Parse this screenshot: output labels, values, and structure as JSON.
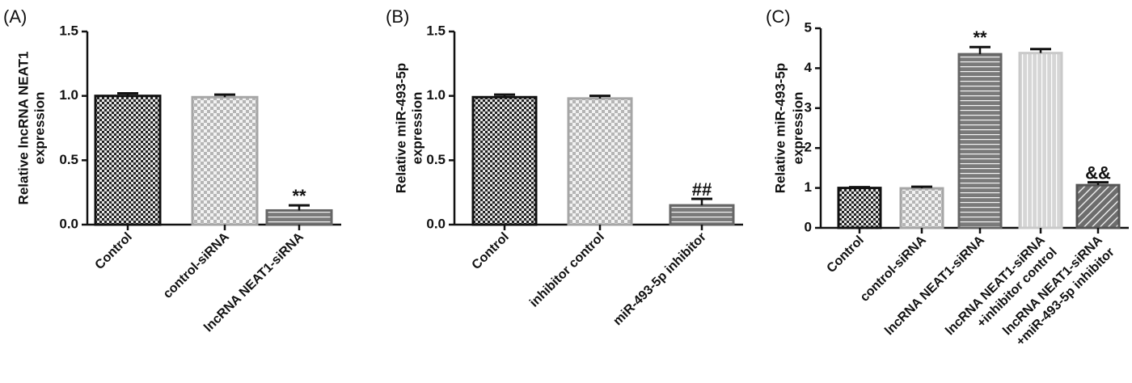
{
  "chart_data": [
    {
      "type": "bar",
      "panel": "(A)",
      "ylabel": [
        "Relative lncRNA NEAT1",
        "expression"
      ],
      "ylim": [
        0,
        1.5
      ],
      "yticks": [
        "0.0",
        "0.5",
        "1.0",
        "1.5"
      ],
      "categories": [
        "Control",
        "control-siRNA",
        "lncRNA NEAT1-siRNA"
      ],
      "values": [
        1.0,
        0.99,
        0.11
      ],
      "errors": [
        0.02,
        0.02,
        0.04
      ],
      "annotations": [
        "",
        "",
        "**"
      ],
      "patterns": [
        "check-dark",
        "check-light",
        "hlines-dark"
      ]
    },
    {
      "type": "bar",
      "panel": "(B)",
      "ylabel": [
        "Relative miR-493-5p",
        "expression"
      ],
      "ylim": [
        0,
        1.5
      ],
      "yticks": [
        "0.0",
        "0.5",
        "1.0",
        "1.5"
      ],
      "categories": [
        "Control",
        "inhibitor control",
        "miR-493-5p inhibitor"
      ],
      "values": [
        0.99,
        0.98,
        0.15
      ],
      "errors": [
        0.02,
        0.02,
        0.05
      ],
      "annotations": [
        "",
        "",
        "##"
      ],
      "patterns": [
        "check-dark",
        "check-light",
        "hlines-dark"
      ]
    },
    {
      "type": "bar",
      "panel": "(C)",
      "ylabel": [
        "Relative miR-493-5p",
        "expression"
      ],
      "ylim": [
        0,
        5
      ],
      "yticks": [
        "0",
        "1",
        "2",
        "3",
        "4",
        "5"
      ],
      "categories": [
        [
          "Control"
        ],
        [
          "control-siRNA"
        ],
        [
          "lncRNA NEAT1-siRNA"
        ],
        [
          "lncRNA NEAT1-siRNA",
          "+inhibitor control"
        ],
        [
          "lncRNA NEAT1-siRNA",
          "+miR-493-5p inhibitor"
        ]
      ],
      "values": [
        1.0,
        0.99,
        4.35,
        4.38,
        1.07
      ],
      "errors": [
        0.02,
        0.04,
        0.18,
        0.1,
        0.07
      ],
      "annotations": [
        "",
        "",
        "**",
        "",
        "&&"
      ],
      "patterns": [
        "check-dark",
        "check-light",
        "hlines-dark",
        "vlines-light",
        "diag-dark"
      ]
    }
  ]
}
